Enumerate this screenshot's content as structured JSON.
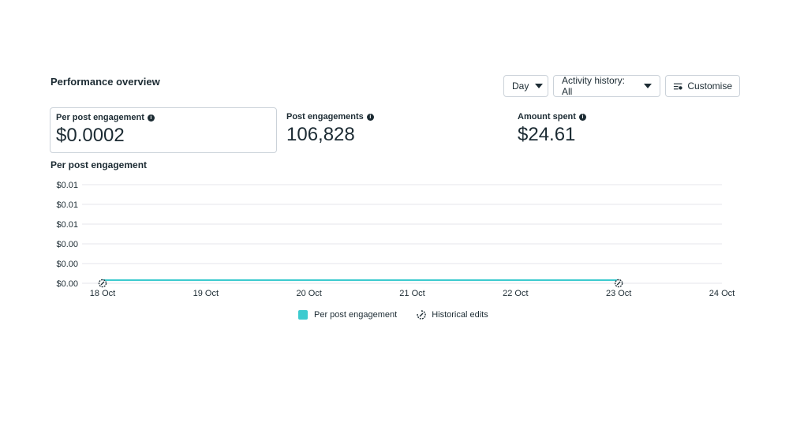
{
  "section_title": "Performance overview",
  "controls": {
    "day_label": "Day",
    "activity_label": "Activity history: All",
    "customise_label": "Customise"
  },
  "metrics": [
    {
      "label": "Per post engagement",
      "value": "$0.0002"
    },
    {
      "label": "Post engagements",
      "value": "106,828"
    },
    {
      "label": "Amount spent",
      "value": "$24.61"
    }
  ],
  "chart_title": "Per post engagement",
  "legend": {
    "series_label": "Per post engagement",
    "edits_label": "Historical edits"
  },
  "colors": {
    "series": "#3dcbcf",
    "grid": "#e4e6eb"
  },
  "chart_data": {
    "type": "line",
    "title": "Per post engagement",
    "y_tick_labels": [
      "$0.01",
      "$0.01",
      "$0.01",
      "$0.00",
      "$0.00",
      "$0.00"
    ],
    "x_tick_labels": [
      "18 Oct",
      "19 Oct",
      "20 Oct",
      "21 Oct",
      "22 Oct",
      "23 Oct",
      "24 Oct"
    ],
    "series": [
      {
        "name": "Per post engagement",
        "x": [
          "18 Oct",
          "19 Oct",
          "20 Oct",
          "21 Oct",
          "22 Oct",
          "23 Oct"
        ],
        "values": [
          0.0002,
          0.0002,
          0.0002,
          0.0002,
          0.0002,
          0.0002
        ]
      }
    ],
    "historical_edits_at": [
      "18 Oct",
      "23 Oct"
    ],
    "ylim": [
      0,
      0.01
    ],
    "grid": true,
    "legend_position": "bottom-center"
  }
}
